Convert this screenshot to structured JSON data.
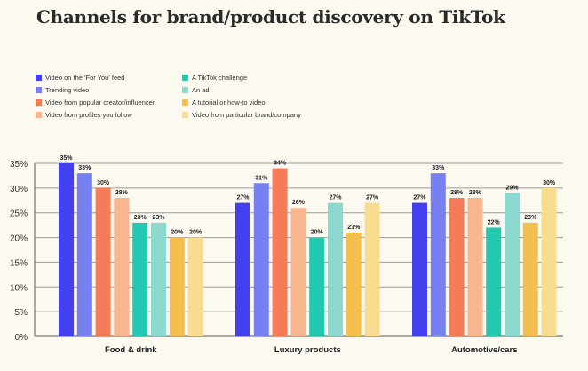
{
  "chart_data": {
    "type": "bar",
    "title": "Channels for brand/product discovery on TikTok",
    "xlabel": "",
    "ylabel": "",
    "ylim": [
      0,
      35
    ],
    "yticks": [
      "0%",
      "5%",
      "10%",
      "15%",
      "20%",
      "25%",
      "30%",
      "35%"
    ],
    "grid": true,
    "legend_position": "top-left",
    "categories": [
      "Food & drink",
      "Luxury products",
      "Automotive/cars"
    ],
    "series": [
      {
        "name": "Video on the 'For You' feed",
        "color": "#4340f0",
        "values": [
          35,
          27,
          27
        ]
      },
      {
        "name": "Trending video",
        "color": "#7680f0",
        "values": [
          33,
          31,
          33
        ]
      },
      {
        "name": "Video from popular creator/influencer",
        "color": "#f47c58",
        "values": [
          30,
          34,
          28
        ]
      },
      {
        "name": "Video from profiles you follow",
        "color": "#f8b68f",
        "values": [
          28,
          26,
          28
        ]
      },
      {
        "name": "A TikTok challenge",
        "color": "#22c9b0",
        "values": [
          23,
          20,
          22
        ]
      },
      {
        "name": "An ad",
        "color": "#8ed9cf",
        "values": [
          23,
          27,
          29
        ]
      },
      {
        "name": "A tutorial or how-to video",
        "color": "#f4bf4d",
        "values": [
          20,
          21,
          23
        ]
      },
      {
        "name": "Video from particular brand/company",
        "color": "#f8dc8f",
        "values": [
          20,
          27,
          30
        ]
      }
    ]
  }
}
